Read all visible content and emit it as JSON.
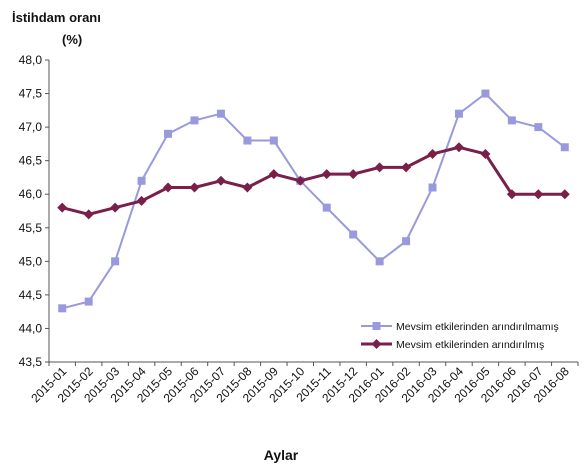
{
  "chart_data": {
    "type": "line",
    "ylabel_line1": "İstihdam oranı",
    "ylabel_line2": "(%)",
    "xlabel": "Aylar",
    "ylim": [
      43.5,
      48.0
    ],
    "yticks": [
      "48,0",
      "47,5",
      "47,0",
      "46,5",
      "46,0",
      "45,5",
      "45,0",
      "44,5",
      "44,0",
      "43,5"
    ],
    "ytick_values": [
      48.0,
      47.5,
      47.0,
      46.5,
      46.0,
      45.5,
      45.0,
      44.5,
      44.0,
      43.5
    ],
    "grid": false,
    "legend_position": "bottom-right",
    "x": [
      "2015-01",
      "2015-02",
      "2015-03",
      "2015-04",
      "2015-05",
      "2015-06",
      "2015-07",
      "2015-08",
      "2015-09",
      "2015-10",
      "2015-11",
      "2015-12",
      "2016-01",
      "2016-02",
      "2016-03",
      "2016-04",
      "2016-05",
      "2016-06",
      "2016-07",
      "2016-08"
    ],
    "series": [
      {
        "name": "Mevsim etkilerinden arındırılmamış",
        "color": "#9999dd",
        "marker": "square",
        "values": [
          44.3,
          44.4,
          45.0,
          46.2,
          46.9,
          47.1,
          47.2,
          46.8,
          46.8,
          46.2,
          45.8,
          45.4,
          45.0,
          45.3,
          46.1,
          47.2,
          47.5,
          47.1,
          47.0,
          46.7
        ]
      },
      {
        "name": "Mevsim etkilerinden arındırılmış",
        "color": "#7a1f4a",
        "marker": "diamond",
        "values": [
          45.8,
          45.7,
          45.8,
          45.9,
          46.1,
          46.1,
          46.2,
          46.1,
          46.3,
          46.2,
          46.3,
          46.3,
          46.4,
          46.4,
          46.6,
          46.7,
          46.6,
          46.0,
          46.0,
          46.0
        ]
      }
    ]
  }
}
